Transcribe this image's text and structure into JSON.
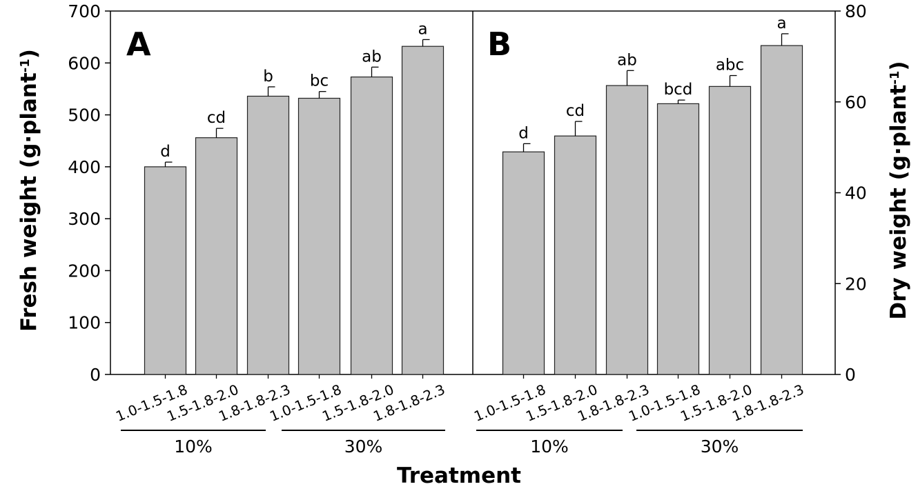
{
  "chart_data": [
    {
      "panel": "A",
      "type": "bar",
      "xlabel": "Treatment",
      "ylabel": "Fresh weight (g·plant⁻¹)",
      "ylim": [
        0,
        700
      ],
      "yticks": [
        0,
        100,
        200,
        300,
        400,
        500,
        600,
        700
      ],
      "categories": [
        "1.0-1.5-1.8",
        "1.5-1.8-2.0",
        "1.8-1.8-2.3",
        "1.0-1.5-1.8",
        "1.5-1.8-2.0",
        "1.8-1.8-2.3"
      ],
      "groups": [
        {
          "label": "10%",
          "categories": [
            "1.0-1.5-1.8",
            "1.5-1.8-2.0",
            "1.8-1.8-2.3"
          ]
        },
        {
          "label": "30%",
          "categories": [
            "1.0-1.5-1.8",
            "1.5-1.8-2.0",
            "1.8-1.8-2.3"
          ]
        }
      ],
      "values": [
        400,
        456,
        536,
        532,
        573,
        632
      ],
      "errors": [
        9,
        18,
        18,
        13,
        19,
        13
      ],
      "significance": [
        "d",
        "cd",
        "b",
        "bc",
        "ab",
        "a"
      ],
      "bar_color": "#c0c0c0"
    },
    {
      "panel": "B",
      "type": "bar",
      "xlabel": "Treatment",
      "ylabel": "Dry weight (g·plant⁻¹)",
      "ylim": [
        0,
        80
      ],
      "yticks": [
        0,
        20,
        40,
        60,
        80
      ],
      "categories": [
        "1.0-1.5-1.8",
        "1.5-1.8-2.0",
        "1.8-1.8-2.3",
        "1.0-1.5-1.8",
        "1.5-1.8-2.0",
        "1.8-1.8-2.3"
      ],
      "groups": [
        {
          "label": "10%",
          "categories": [
            "1.0-1.5-1.8",
            "1.5-1.8-2.0",
            "1.8-1.8-2.3"
          ]
        },
        {
          "label": "30%",
          "categories": [
            "1.0-1.5-1.8",
            "1.5-1.8-2.0",
            "1.8-1.8-2.3"
          ]
        }
      ],
      "values": [
        49,
        52.5,
        63.6,
        59.6,
        63.4,
        72.4
      ],
      "errors": [
        1.8,
        3.2,
        3.3,
        0.8,
        2.4,
        2.6
      ],
      "significance": [
        "d",
        "cd",
        "ab",
        "bcd",
        "abc",
        "a"
      ],
      "bar_color": "#c0c0c0"
    }
  ],
  "shared_xlabel": "Treatment"
}
